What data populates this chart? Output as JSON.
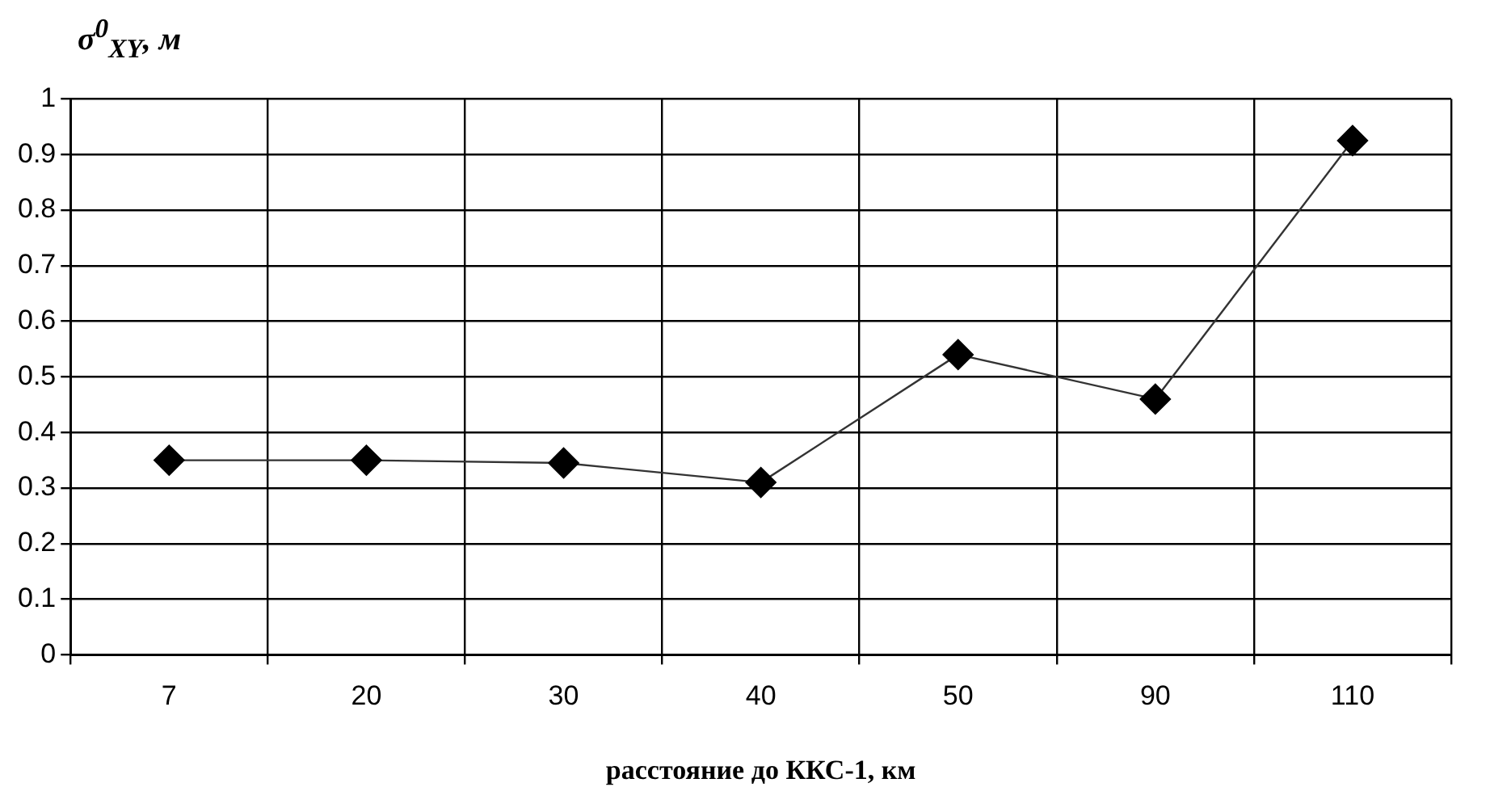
{
  "chart_data": {
    "type": "line",
    "ylabel": "σ$^{0}$$_{XY}$, м",
    "xlabel": "расстояние до ККС-1, км",
    "categories": [
      "7",
      "20",
      "30",
      "40",
      "50",
      "90",
      "110"
    ],
    "series": [
      {
        "color": "#000000",
        "values": [
          0.35,
          0.35,
          0.345,
          0.31,
          0.54,
          0.46,
          0.925
        ]
      }
    ],
    "ylim": [
      0,
      1
    ],
    "yticks": [
      0,
      0.1,
      0.2,
      0.3,
      0.4,
      0.5,
      0.6,
      0.7,
      0.8,
      0.9,
      1
    ],
    "grid": true,
    "marker": "diamond",
    "line_style": "solid"
  }
}
